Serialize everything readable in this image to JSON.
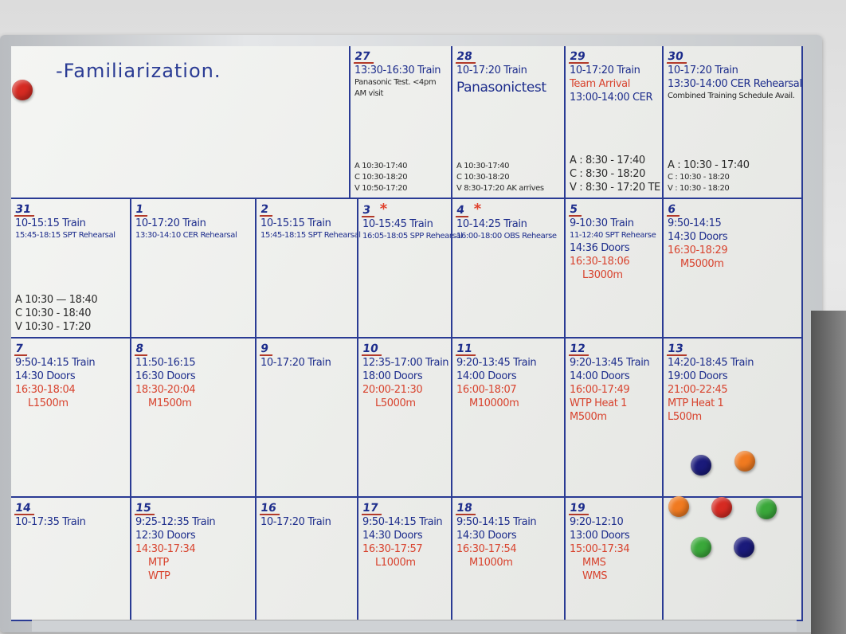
{
  "title": "-Familiarization.",
  "colors": {
    "blue": "#1d2d8c",
    "red": "#d8432e",
    "black": "#2a2a2a",
    "grid": "#2a3b94"
  },
  "magnets": [
    {
      "color": "#d62a22"
    },
    {
      "color": "#1a1a7a"
    },
    {
      "color": "#f07a20"
    },
    {
      "color": "#f07a20"
    },
    {
      "color": "#d62a22"
    },
    {
      "color": "#3aa83a"
    },
    {
      "color": "#3aa83a"
    },
    {
      "color": "#1a1a7a"
    }
  ],
  "weeks": [
    [
      {
        "date": "27",
        "lines": [
          {
            "t": "13:30-16:30 Train",
            "c": "blue"
          },
          {
            "t": "Panasonic Test. <4pm",
            "c": "black",
            "s": "small"
          },
          {
            "t": "AM visit",
            "c": "black",
            "s": "small"
          }
        ],
        "bottom": [
          {
            "t": "A 10:30-17:40",
            "c": "black",
            "s": "small"
          },
          {
            "t": "C 10:30-18:20",
            "c": "black",
            "s": "small"
          },
          {
            "t": "V 10:50-17:20",
            "c": "black",
            "s": "small"
          }
        ]
      },
      {
        "date": "28",
        "lines": [
          {
            "t": "10-17:20 Train",
            "c": "blue"
          },
          {
            "t": "Panasonictest",
            "c": "blue",
            "s": "big"
          }
        ],
        "bottom": [
          {
            "t": "A 10:30-17:40",
            "c": "black",
            "s": "small"
          },
          {
            "t": "C 10:30-18:20",
            "c": "black",
            "s": "small"
          },
          {
            "t": "V 8:30-17:20  AK arrives",
            "c": "black",
            "s": "small"
          }
        ]
      },
      {
        "date": "29",
        "lines": [
          {
            "t": "10-17:20 Train",
            "c": "blue"
          },
          {
            "t": "Team Arrival",
            "c": "red"
          },
          {
            "t": "13:00-14:00 CER",
            "c": "blue"
          }
        ],
        "bottom": [
          {
            "t": "A : 8:30 - 17:40",
            "c": "black"
          },
          {
            "t": "C : 8:30 - 18:20",
            "c": "black"
          },
          {
            "t": "V : 8:30 - 17:20 TE",
            "c": "black"
          }
        ]
      },
      {
        "date": "30",
        "lines": [
          {
            "t": "10-17:20 Train",
            "c": "blue"
          },
          {
            "t": "13:30-14:00 CER Rehearsal",
            "c": "blue"
          },
          {
            "t": "Combined Training Schedule Avail.",
            "c": "black",
            "s": "small"
          }
        ],
        "bottom": [
          {
            "t": "A : 10:30 - 17:40",
            "c": "black"
          },
          {
            "t": "C : 10:30 - 18:20",
            "c": "black",
            "s": "small"
          },
          {
            "t": "V : 10:30 - 18:20",
            "c": "black",
            "s": "small"
          }
        ]
      }
    ],
    [
      {
        "date": "31",
        "lines": [
          {
            "t": "10-15:15 Train",
            "c": "blue"
          },
          {
            "t": "15:45-18:15 SPT Rehearsal",
            "c": "blue",
            "s": "small"
          }
        ],
        "bottom": [
          {
            "t": "A 10:30 — 18:40",
            "c": "black"
          },
          {
            "t": "C 10:30 - 18:40",
            "c": "black"
          },
          {
            "t": "V 10:30 - 17:20",
            "c": "black"
          }
        ]
      },
      {
        "date": "1",
        "lines": [
          {
            "t": "10-17:20 Train",
            "c": "blue"
          },
          {
            "t": "13:30-14:10 CER Rehearsal",
            "c": "blue",
            "s": "small"
          }
        ]
      },
      {
        "date": "2",
        "lines": [
          {
            "t": "10-15:15 Train",
            "c": "blue"
          },
          {
            "t": "15:45-18:15 SPT Rehearsal",
            "c": "blue",
            "s": "small"
          }
        ]
      },
      {
        "date": "3",
        "star": "*",
        "lines": [
          {
            "t": "10-15:45 Train",
            "c": "blue"
          },
          {
            "t": "16:05-18:05 SPP Rehearsal",
            "c": "blue",
            "s": "small"
          }
        ]
      },
      {
        "date": "4",
        "star": "*",
        "lines": [
          {
            "t": "10-14:25 Train",
            "c": "blue"
          },
          {
            "t": "16:00-18:00 OBS Rehearse",
            "c": "blue",
            "s": "small"
          }
        ]
      },
      {
        "date": "5",
        "lines": [
          {
            "t": "9-10:30 Train",
            "c": "blue"
          },
          {
            "t": "11-12:40 SPT Rehearse",
            "c": "blue",
            "s": "small"
          },
          {
            "t": "14:36 Doors",
            "c": "blue"
          },
          {
            "t": "16:30-18:06",
            "c": "red"
          },
          {
            "t": "L3000m",
            "c": "red",
            "i": true
          }
        ]
      },
      {
        "date": "6",
        "lines": [
          {
            "t": "9:50-14:15",
            "c": "blue"
          },
          {
            "t": "14:30 Doors",
            "c": "blue"
          },
          {
            "t": "16:30-18:29",
            "c": "red"
          },
          {
            "t": "M5000m",
            "c": "red",
            "i": true
          }
        ]
      }
    ],
    [
      {
        "date": "7",
        "lines": [
          {
            "t": "9:50-14:15 Train",
            "c": "blue"
          },
          {
            "t": "14:30 Doors",
            "c": "blue"
          },
          {
            "t": "16:30-18:04",
            "c": "red"
          },
          {
            "t": "L1500m",
            "c": "red",
            "i": true
          }
        ]
      },
      {
        "date": "8",
        "lines": [
          {
            "t": "11:50-16:15",
            "c": "blue"
          },
          {
            "t": "16:30 Doors",
            "c": "blue"
          },
          {
            "t": "18:30-20:04",
            "c": "red"
          },
          {
            "t": "M1500m",
            "c": "red",
            "i": true
          }
        ]
      },
      {
        "date": "9",
        "lines": [
          {
            "t": "10-17:20 Train",
            "c": "blue"
          }
        ]
      },
      {
        "date": "10",
        "lines": [
          {
            "t": "12:35-17:00 Train",
            "c": "blue"
          },
          {
            "t": "18:00 Doors",
            "c": "blue"
          },
          {
            "t": "20:00-21:30",
            "c": "red"
          },
          {
            "t": "L5000m",
            "c": "red",
            "i": true
          }
        ]
      },
      {
        "date": "11",
        "lines": [
          {
            "t": "9:20-13:45 Train",
            "c": "blue"
          },
          {
            "t": "14:00 Doors",
            "c": "blue"
          },
          {
            "t": "16:00-18:07",
            "c": "red"
          },
          {
            "t": "M10000m",
            "c": "red",
            "i": true
          }
        ]
      },
      {
        "date": "12",
        "lines": [
          {
            "t": "9:20-13:45 Train",
            "c": "blue"
          },
          {
            "t": "14:00 Doors",
            "c": "blue"
          },
          {
            "t": "16:00-17:49",
            "c": "red"
          },
          {
            "t": "WTP Heat 1",
            "c": "red"
          },
          {
            "t": "M500m",
            "c": "red"
          }
        ]
      },
      {
        "date": "13",
        "lines": [
          {
            "t": "14:20-18:45 Train",
            "c": "blue"
          },
          {
            "t": "19:00 Doors",
            "c": "blue"
          },
          {
            "t": "21:00-22:45",
            "c": "red"
          },
          {
            "t": "MTP Heat 1",
            "c": "red"
          },
          {
            "t": "L500m",
            "c": "red"
          }
        ]
      }
    ],
    [
      {
        "date": "14",
        "lines": [
          {
            "t": "10-17:35 Train",
            "c": "blue"
          }
        ]
      },
      {
        "date": "15",
        "lines": [
          {
            "t": "9:25-12:35 Train",
            "c": "blue"
          },
          {
            "t": "12:30 Doors",
            "c": "blue"
          },
          {
            "t": "14:30-17:34",
            "c": "red"
          },
          {
            "t": "MTP",
            "c": "red",
            "i": true
          },
          {
            "t": "WTP",
            "c": "red",
            "i": true
          }
        ]
      },
      {
        "date": "16",
        "lines": [
          {
            "t": "10-17:20 Train",
            "c": "blue"
          }
        ]
      },
      {
        "date": "17",
        "lines": [
          {
            "t": "9:50-14:15 Train",
            "c": "blue"
          },
          {
            "t": "14:30 Doors",
            "c": "blue"
          },
          {
            "t": "16:30-17:57",
            "c": "red"
          },
          {
            "t": "L1000m",
            "c": "red",
            "i": true
          }
        ]
      },
      {
        "date": "18",
        "lines": [
          {
            "t": "9:50-14:15 Train",
            "c": "blue"
          },
          {
            "t": "14:30 Doors",
            "c": "blue"
          },
          {
            "t": "16:30-17:54",
            "c": "red"
          },
          {
            "t": "M1000m",
            "c": "red",
            "i": true
          }
        ]
      },
      {
        "date": "19",
        "lines": [
          {
            "t": "9:20-12:10",
            "c": "blue"
          },
          {
            "t": "13:00 Doors",
            "c": "blue"
          },
          {
            "t": "15:00-17:34",
            "c": "red"
          },
          {
            "t": "MMS",
            "c": "red",
            "i": true
          },
          {
            "t": "WMS",
            "c": "red",
            "i": true
          }
        ]
      },
      {
        "date": "",
        "lines": []
      }
    ]
  ]
}
